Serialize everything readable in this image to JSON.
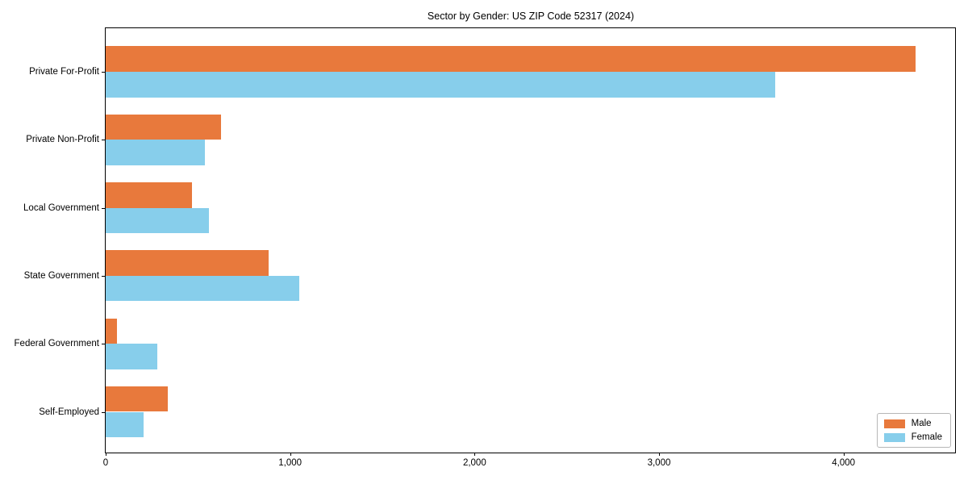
{
  "chart_data": {
    "type": "bar",
    "orientation": "horizontal",
    "title": "Sector by Gender: US ZIP Code 52317 (2024)",
    "xlabel": "",
    "ylabel": "",
    "categories": [
      "Private For-Profit",
      "Private Non-Profit",
      "Local Government",
      "State Government",
      "Federal Government",
      "Self-Employed"
    ],
    "series": [
      {
        "name": "Male",
        "color": "#e8793c",
        "values": [
          4390,
          625,
          470,
          885,
          60,
          335
        ]
      },
      {
        "name": "Female",
        "color": "#87ceeb",
        "values": [
          3630,
          540,
          560,
          1050,
          280,
          205
        ]
      }
    ],
    "xlim": [
      0,
      4605
    ],
    "xticks": [
      0,
      1000,
      2000,
      3000,
      4000
    ],
    "xtick_labels": [
      "0",
      "1,000",
      "2,000",
      "3,000",
      "4,000"
    ],
    "legend_position": "lower right",
    "grid": false,
    "plot_border_color": "#000000",
    "background_color": "#ffffff"
  }
}
